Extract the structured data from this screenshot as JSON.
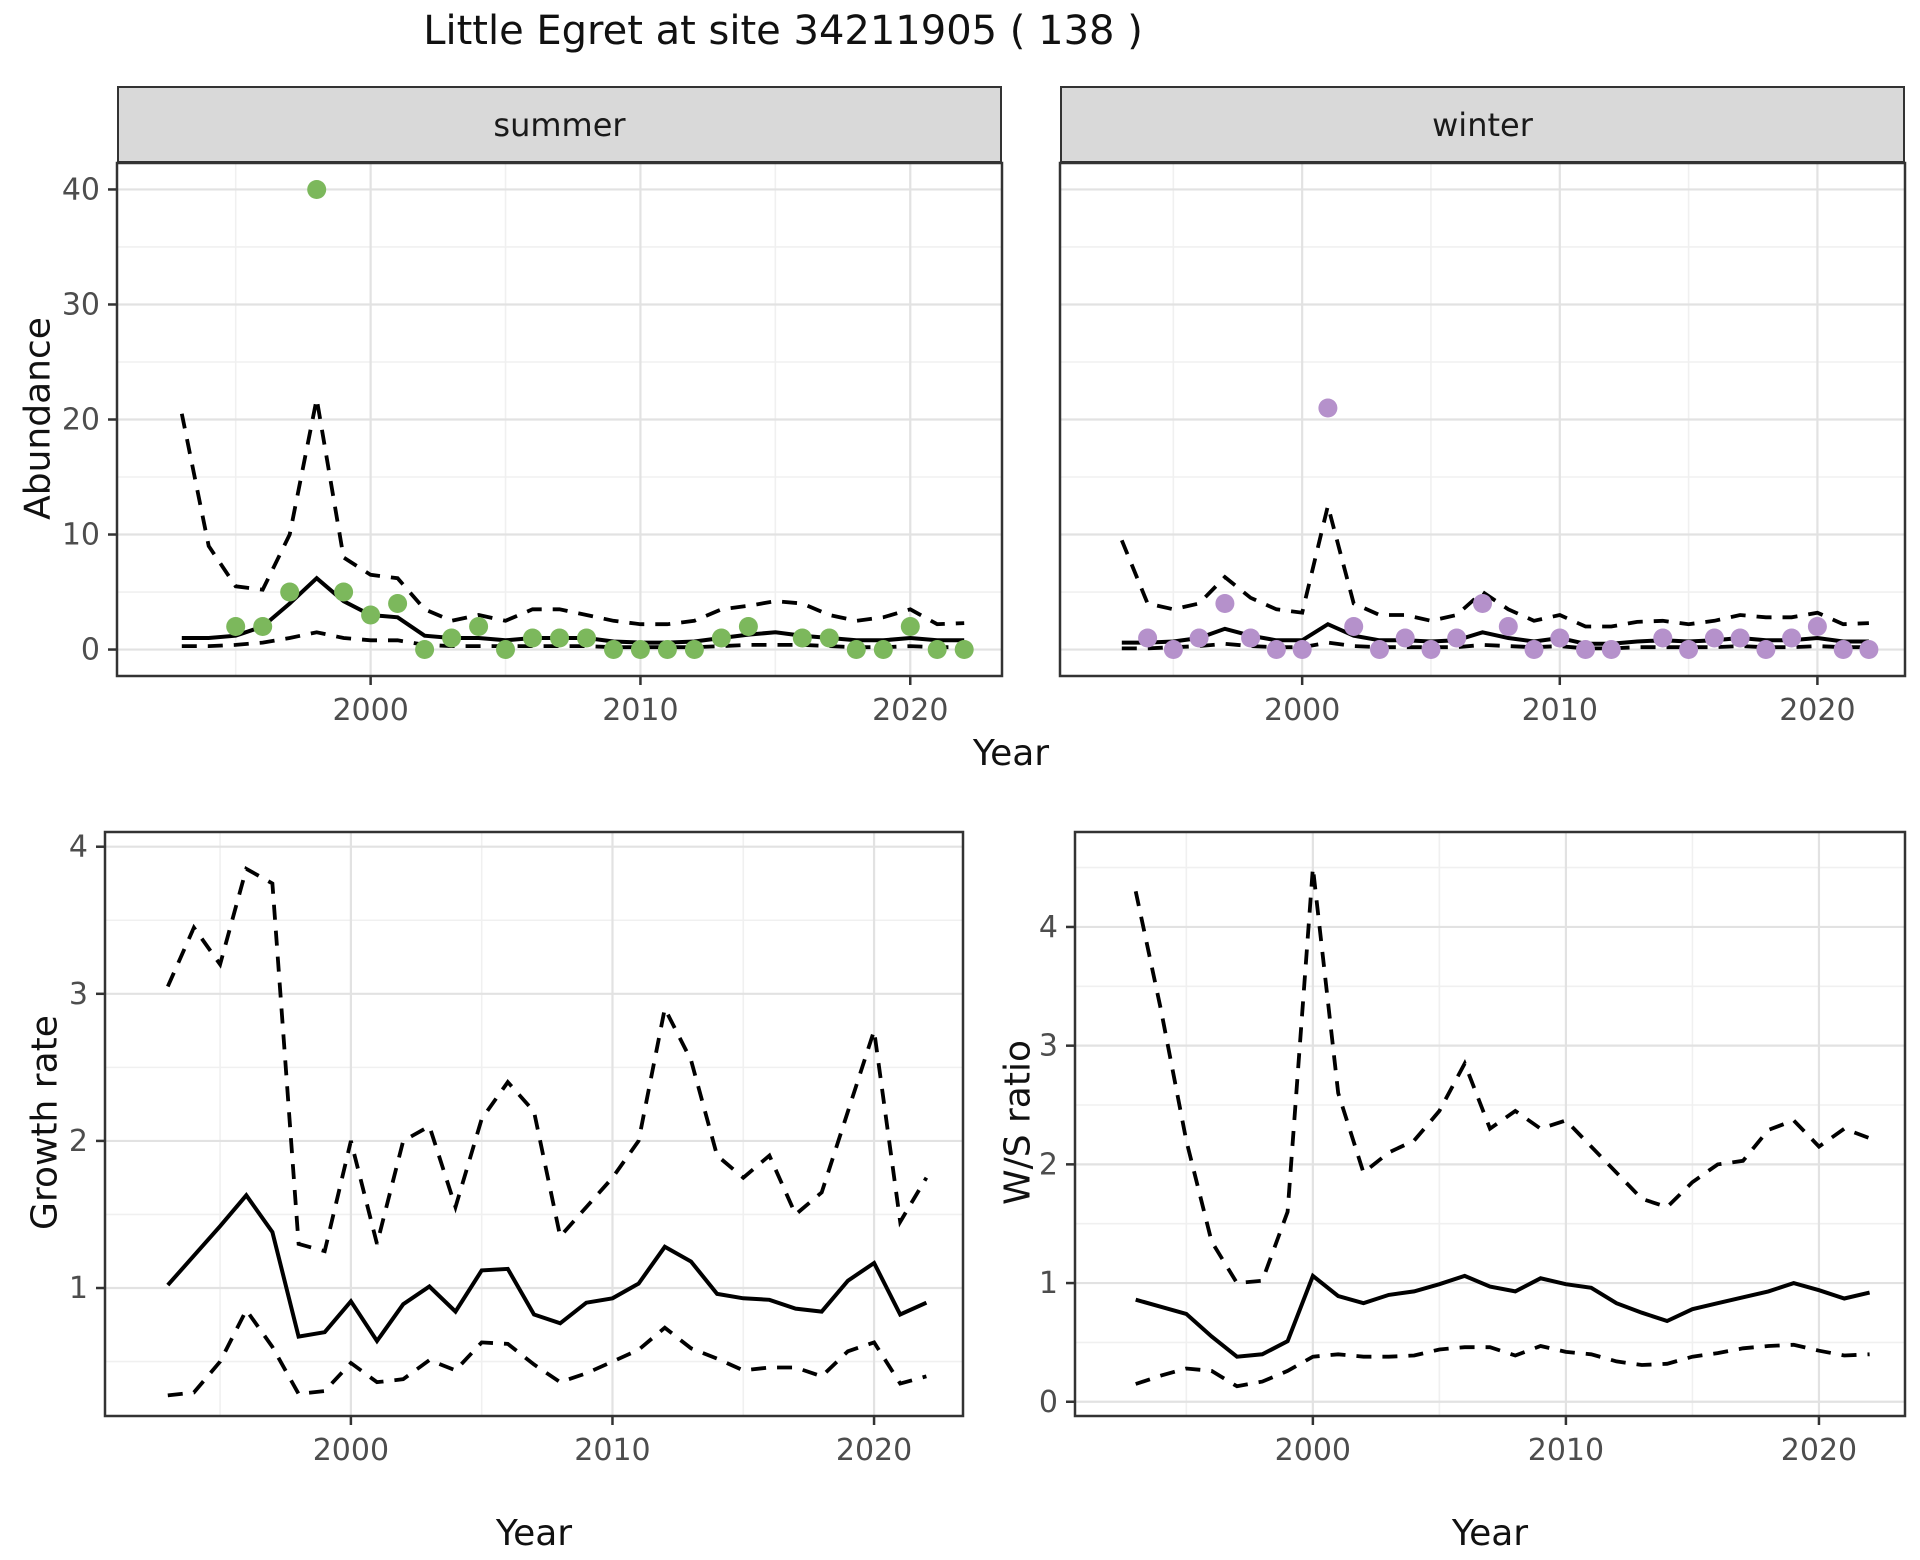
{
  "title": "Little Egret at site 34211905 ( 138 )",
  "colors": {
    "summer_point": "#7CB85C",
    "winter_point": "#B591CB",
    "line": "#000000",
    "strip_bg": "#D9D9D9",
    "panel_border": "#333333",
    "grid_major": "#E2E2E2",
    "grid_minor": "#F0F0F0",
    "tick_label": "#4D4D4D"
  },
  "x_axis": {
    "tick_values": [
      2000,
      2010,
      2020
    ],
    "tick_labels": [
      "2000",
      "2010",
      "2020"
    ],
    "minor_values": [
      1995,
      2005,
      2015
    ]
  },
  "chart_data": [
    {
      "id": "summer",
      "type": "scatter",
      "facet_label": "summer",
      "xlabel": "Year",
      "ylabel": "Abundance",
      "ylim": [
        -2.3,
        42.3
      ],
      "yticks": [
        0,
        10,
        20,
        30,
        40
      ],
      "y_minor": [
        5,
        15,
        25,
        35
      ],
      "point_color": "#7CB85C",
      "years": [
        1993,
        1994,
        1995,
        1996,
        1997,
        1998,
        1999,
        2000,
        2001,
        2002,
        2003,
        2004,
        2005,
        2006,
        2007,
        2008,
        2009,
        2010,
        2011,
        2012,
        2013,
        2014,
        2015,
        2016,
        2017,
        2018,
        2019,
        2020,
        2021,
        2022
      ],
      "points": [
        [
          1995,
          2
        ],
        [
          1996,
          2
        ],
        [
          1997,
          5
        ],
        [
          1998,
          40
        ],
        [
          1999,
          5
        ],
        [
          2000,
          3
        ],
        [
          2001,
          4
        ],
        [
          2002,
          0
        ],
        [
          2003,
          1
        ],
        [
          2004,
          2
        ],
        [
          2005,
          0
        ],
        [
          2006,
          1
        ],
        [
          2007,
          1
        ],
        [
          2008,
          1
        ],
        [
          2009,
          0
        ],
        [
          2010,
          0
        ],
        [
          2011,
          0
        ],
        [
          2012,
          0
        ],
        [
          2013,
          1
        ],
        [
          2014,
          2
        ],
        [
          2016,
          1
        ],
        [
          2017,
          1
        ],
        [
          2018,
          0
        ],
        [
          2019,
          0
        ],
        [
          2020,
          2
        ],
        [
          2021,
          0
        ],
        [
          2022,
          0
        ]
      ],
      "series": [
        {
          "name": "mean",
          "style": "solid",
          "values": [
            1.0,
            1.0,
            1.2,
            2.0,
            4.0,
            6.2,
            4.2,
            3.0,
            2.8,
            1.2,
            1.0,
            1.0,
            0.8,
            1.0,
            1.0,
            1.0,
            0.7,
            0.6,
            0.6,
            0.7,
            1.0,
            1.3,
            1.5,
            1.2,
            1.0,
            0.8,
            0.8,
            1.0,
            0.8,
            0.8
          ]
        },
        {
          "name": "lower_ci",
          "style": "dashed",
          "values": [
            0.3,
            0.3,
            0.4,
            0.6,
            1.0,
            1.5,
            1.0,
            0.8,
            0.8,
            0.4,
            0.3,
            0.3,
            0.3,
            0.3,
            0.3,
            0.3,
            0.2,
            0.2,
            0.2,
            0.2,
            0.3,
            0.4,
            0.4,
            0.4,
            0.3,
            0.2,
            0.2,
            0.3,
            0.2,
            0.2
          ]
        },
        {
          "name": "upper_ci",
          "style": "dashed",
          "values": [
            20.5,
            9.0,
            5.5,
            5.2,
            10.0,
            21.8,
            8.0,
            6.5,
            6.2,
            3.5,
            2.5,
            3.0,
            2.5,
            3.5,
            3.5,
            3.0,
            2.5,
            2.2,
            2.2,
            2.5,
            3.5,
            3.8,
            4.2,
            4.0,
            3.0,
            2.5,
            2.8,
            3.5,
            2.2,
            2.3
          ]
        }
      ]
    },
    {
      "id": "winter",
      "type": "scatter",
      "facet_label": "winter",
      "xlabel": "Year",
      "ylabel": "Abundance",
      "ylim": [
        -2.3,
        42.3
      ],
      "yticks": [
        0,
        10,
        20,
        30,
        40
      ],
      "y_minor": [
        5,
        15,
        25,
        35
      ],
      "point_color": "#B591CB",
      "years": [
        1993,
        1994,
        1995,
        1996,
        1997,
        1998,
        1999,
        2000,
        2001,
        2002,
        2003,
        2004,
        2005,
        2006,
        2007,
        2008,
        2009,
        2010,
        2011,
        2012,
        2013,
        2014,
        2015,
        2016,
        2017,
        2018,
        2019,
        2020,
        2021,
        2022
      ],
      "points": [
        [
          1994,
          1
        ],
        [
          1995,
          0
        ],
        [
          1996,
          1
        ],
        [
          1997,
          4
        ],
        [
          1998,
          1
        ],
        [
          1999,
          0
        ],
        [
          2000,
          0
        ],
        [
          2001,
          21
        ],
        [
          2002,
          2
        ],
        [
          2003,
          0
        ],
        [
          2004,
          1
        ],
        [
          2005,
          0
        ],
        [
          2006,
          1
        ],
        [
          2007,
          4
        ],
        [
          2008,
          2
        ],
        [
          2009,
          0
        ],
        [
          2010,
          1
        ],
        [
          2011,
          0
        ],
        [
          2012,
          0
        ],
        [
          2014,
          1
        ],
        [
          2015,
          0
        ],
        [
          2016,
          1
        ],
        [
          2017,
          1
        ],
        [
          2018,
          0
        ],
        [
          2019,
          1
        ],
        [
          2020,
          2
        ],
        [
          2021,
          0
        ],
        [
          2022,
          0
        ]
      ],
      "series": [
        {
          "name": "mean",
          "style": "solid",
          "values": [
            0.6,
            0.6,
            0.7,
            1.0,
            1.8,
            1.2,
            0.8,
            0.8,
            2.2,
            1.2,
            0.8,
            0.8,
            0.7,
            0.8,
            1.5,
            1.0,
            0.7,
            1.0,
            0.5,
            0.5,
            0.7,
            0.8,
            0.7,
            0.8,
            1.0,
            0.8,
            0.8,
            1.0,
            0.7,
            0.7
          ]
        },
        {
          "name": "lower_ci",
          "style": "dashed",
          "values": [
            0.1,
            0.1,
            0.2,
            0.3,
            0.5,
            0.3,
            0.2,
            0.2,
            0.6,
            0.3,
            0.2,
            0.2,
            0.2,
            0.2,
            0.4,
            0.3,
            0.2,
            0.3,
            0.1,
            0.1,
            0.2,
            0.2,
            0.2,
            0.2,
            0.3,
            0.2,
            0.2,
            0.3,
            0.2,
            0.2
          ]
        },
        {
          "name": "upper_ci",
          "style": "dashed",
          "values": [
            9.5,
            4.0,
            3.5,
            4.0,
            6.3,
            4.5,
            3.5,
            3.2,
            12.5,
            4.0,
            3.0,
            3.0,
            2.5,
            3.0,
            5.0,
            3.5,
            2.5,
            3.0,
            2.0,
            2.0,
            2.4,
            2.5,
            2.2,
            2.5,
            3.0,
            2.8,
            2.8,
            3.2,
            2.2,
            2.3
          ]
        }
      ]
    },
    {
      "id": "growth",
      "type": "line",
      "facet_label": "",
      "xlabel": "Year",
      "ylabel": "Growth rate",
      "ylim": [
        0.13,
        4.1
      ],
      "yticks": [
        1,
        2,
        3,
        4
      ],
      "y_minor": [
        0.5,
        1.5,
        2.5,
        3.5
      ],
      "point_color": "",
      "years": [
        1993,
        1994,
        1995,
        1996,
        1997,
        1998,
        1999,
        2000,
        2001,
        2002,
        2003,
        2004,
        2005,
        2006,
        2007,
        2008,
        2009,
        2010,
        2011,
        2012,
        2013,
        2014,
        2015,
        2016,
        2017,
        2018,
        2019,
        2020,
        2021,
        2022
      ],
      "points": [],
      "series": [
        {
          "name": "mean",
          "style": "solid",
          "values": [
            1.02,
            1.22,
            1.42,
            1.63,
            1.38,
            0.67,
            0.7,
            0.91,
            0.64,
            0.89,
            1.01,
            0.84,
            1.12,
            1.13,
            0.82,
            0.76,
            0.9,
            0.93,
            1.03,
            1.28,
            1.18,
            0.96,
            0.93,
            0.92,
            0.86,
            0.84,
            1.05,
            1.17,
            0.82,
            0.9
          ]
        },
        {
          "name": "lower_ci",
          "style": "dashed",
          "values": [
            0.27,
            0.29,
            0.5,
            0.85,
            0.6,
            0.28,
            0.3,
            0.49,
            0.36,
            0.38,
            0.51,
            0.44,
            0.63,
            0.62,
            0.48,
            0.36,
            0.42,
            0.5,
            0.58,
            0.73,
            0.59,
            0.52,
            0.44,
            0.46,
            0.46,
            0.4,
            0.57,
            0.63,
            0.35,
            0.4
          ]
        },
        {
          "name": "upper_ci",
          "style": "dashed",
          "values": [
            3.05,
            3.45,
            3.2,
            3.85,
            3.75,
            1.3,
            1.25,
            2.0,
            1.3,
            2.0,
            2.1,
            1.55,
            2.15,
            2.4,
            2.2,
            1.35,
            1.55,
            1.75,
            2.0,
            2.9,
            2.55,
            1.9,
            1.75,
            1.9,
            1.5,
            1.65,
            2.2,
            2.75,
            1.45,
            1.75
          ]
        }
      ]
    },
    {
      "id": "ws",
      "type": "line",
      "facet_label": "",
      "xlabel": "Year",
      "ylabel": "W/S ratio",
      "ylim": [
        -0.12,
        4.8
      ],
      "yticks": [
        0,
        1,
        2,
        3,
        4
      ],
      "y_minor": [
        0.5,
        1.5,
        2.5,
        3.5,
        4.5
      ],
      "point_color": "",
      "years": [
        1993,
        1994,
        1995,
        1996,
        1997,
        1998,
        1999,
        2000,
        2001,
        2002,
        2003,
        2004,
        2005,
        2006,
        2007,
        2008,
        2009,
        2010,
        2011,
        2012,
        2013,
        2014,
        2015,
        2016,
        2017,
        2018,
        2019,
        2020,
        2021,
        2022
      ],
      "points": [],
      "series": [
        {
          "name": "mean",
          "style": "solid",
          "values": [
            0.86,
            0.8,
            0.74,
            0.55,
            0.38,
            0.4,
            0.51,
            1.06,
            0.89,
            0.83,
            0.9,
            0.93,
            0.99,
            1.06,
            0.97,
            0.93,
            1.04,
            0.99,
            0.96,
            0.83,
            0.75,
            0.68,
            0.78,
            0.83,
            0.88,
            0.93,
            1.0,
            0.94,
            0.87,
            0.92
          ]
        },
        {
          "name": "lower_ci",
          "style": "dashed",
          "values": [
            0.15,
            0.22,
            0.28,
            0.26,
            0.13,
            0.17,
            0.26,
            0.38,
            0.4,
            0.38,
            0.38,
            0.39,
            0.44,
            0.46,
            0.46,
            0.39,
            0.47,
            0.42,
            0.4,
            0.34,
            0.31,
            0.32,
            0.38,
            0.41,
            0.45,
            0.47,
            0.48,
            0.43,
            0.39,
            0.4
          ]
        },
        {
          "name": "upper_ci",
          "style": "dashed",
          "values": [
            4.3,
            3.3,
            2.2,
            1.35,
            1.0,
            1.02,
            1.6,
            4.5,
            2.6,
            1.93,
            2.1,
            2.2,
            2.45,
            2.85,
            2.3,
            2.45,
            2.3,
            2.37,
            2.15,
            1.93,
            1.71,
            1.64,
            1.85,
            2.0,
            2.03,
            2.29,
            2.37,
            2.15,
            2.3,
            2.22
          ]
        }
      ]
    }
  ]
}
